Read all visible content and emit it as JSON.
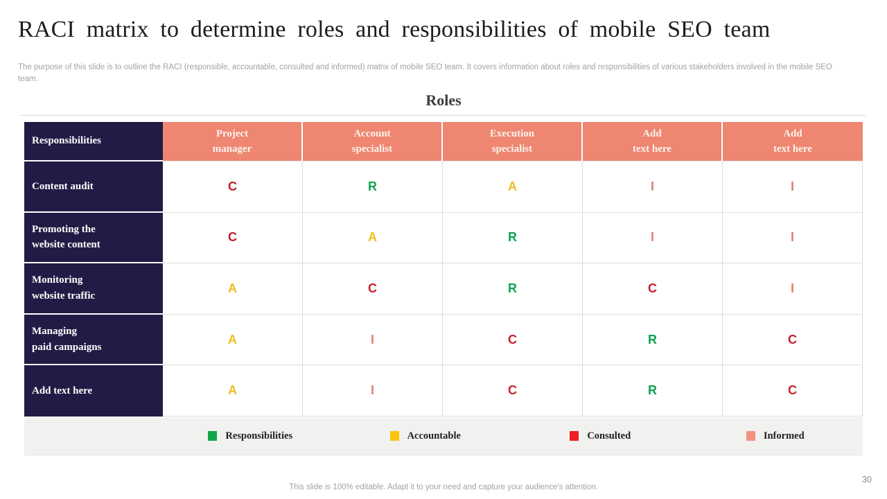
{
  "slide": {
    "title": "RACI matrix to determine roles and responsibilities of mobile SEO team",
    "subtitle": "The purpose of this slide is to outline the RACI (responsible, accountable, consulted and informed) matrix of mobile SEO team. It covers information about roles and responsibilities of various stakeholders involved in the mobile SEO team.",
    "footer_note": "This slide is 100% editable. Adapt it to your need and capture your audience's attention.",
    "page_number": "30"
  },
  "matrix": {
    "section_title": "Roles",
    "corner_header": "Responsibilities",
    "column_headers": [
      "Project\nmanager",
      "Account\nspecialist",
      "Execution\nspecialist",
      "Add\ntext here",
      "Add\ntext here"
    ],
    "rows": [
      {
        "label": "Content audit",
        "cells": [
          {
            "letter": "C",
            "color": "#c1232b"
          },
          {
            "letter": "R",
            "color": "#0ca252"
          },
          {
            "letter": "A",
            "color": "#eebd1e"
          },
          {
            "letter": "I",
            "color": "#e4806c"
          },
          {
            "letter": "I",
            "color": "#e4806c"
          }
        ]
      },
      {
        "label": "Promoting the\nwebsite content",
        "cells": [
          {
            "letter": "C",
            "color": "#c1232b"
          },
          {
            "letter": "A",
            "color": "#eebd1e"
          },
          {
            "letter": "R",
            "color": "#0ca252"
          },
          {
            "letter": "I",
            "color": "#e4806c"
          },
          {
            "letter": "I",
            "color": "#e4806c"
          }
        ]
      },
      {
        "label": "Monitoring\nwebsite traffic",
        "cells": [
          {
            "letter": "A",
            "color": "#eebd1e"
          },
          {
            "letter": "C",
            "color": "#c1232b"
          },
          {
            "letter": "R",
            "color": "#0ca252"
          },
          {
            "letter": "C",
            "color": "#c1232b"
          },
          {
            "letter": "I",
            "color": "#e4806c"
          }
        ]
      },
      {
        "label": "Managing\npaid campaigns",
        "cells": [
          {
            "letter": "A",
            "color": "#eebd1e"
          },
          {
            "letter": "I",
            "color": "#e4806c"
          },
          {
            "letter": "C",
            "color": "#c1232b"
          },
          {
            "letter": "R",
            "color": "#0ca252"
          },
          {
            "letter": "C",
            "color": "#c1232b"
          }
        ]
      },
      {
        "label": "Add text here",
        "cells": [
          {
            "letter": "A",
            "color": "#eebd1e"
          },
          {
            "letter": "I",
            "color": "#e4806c"
          },
          {
            "letter": "C",
            "color": "#c1232b"
          },
          {
            "letter": "R",
            "color": "#0ca252"
          },
          {
            "letter": "C",
            "color": "#c1232b"
          }
        ]
      }
    ]
  },
  "legend": {
    "items": [
      {
        "label": "Responsibilities",
        "color": "#10a74b"
      },
      {
        "label": "Accountable",
        "color": "#fcc40c"
      },
      {
        "label": "Consulted",
        "color": "#ee1c23"
      },
      {
        "label": "Informed",
        "color": "#f0917e"
      }
    ]
  },
  "colors": {
    "header_navy": "#211c45",
    "header_salmon": "#ee8672",
    "letter_consulted_red": "#c1232b",
    "letter_responsible_green": "#0ca252",
    "letter_accountable_yellow": "#eebd1e",
    "letter_informed_salmon": "#e4806c",
    "legend_background": "#f1f1ef"
  }
}
